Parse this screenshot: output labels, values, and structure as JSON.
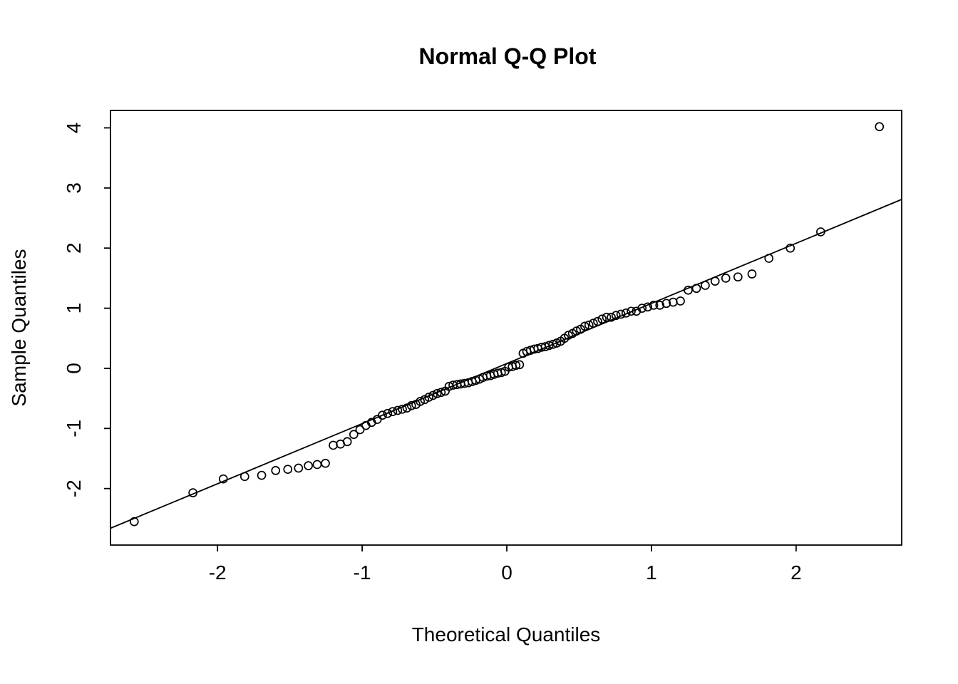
{
  "colors": {
    "foreground": "#000000",
    "background": "#ffffff"
  },
  "chart_data": {
    "type": "scatter",
    "title": "Normal Q-Q Plot",
    "xlabel": "Theoretical Quantiles",
    "ylabel": "Sample Quantiles",
    "xlim": [
      -2.74,
      2.73
    ],
    "ylim": [
      -2.94,
      4.29
    ],
    "x_ticks": [
      -2,
      -1,
      0,
      1,
      2
    ],
    "y_ticks": [
      -2,
      -1,
      0,
      1,
      2,
      3,
      4
    ],
    "grid": false,
    "legend": "none",
    "marker": "open-circle",
    "reference_line": {
      "slope": 1.0,
      "intercept": 0.08
    },
    "points": [
      [
        -2.576,
        -2.55
      ],
      [
        -2.17,
        -2.07
      ],
      [
        -1.96,
        -1.84
      ],
      [
        -1.812,
        -1.8
      ],
      [
        -1.695,
        -1.78
      ],
      [
        -1.598,
        -1.7
      ],
      [
        -1.514,
        -1.68
      ],
      [
        -1.44,
        -1.66
      ],
      [
        -1.372,
        -1.62
      ],
      [
        -1.311,
        -1.6
      ],
      [
        -1.254,
        -1.58
      ],
      [
        -1.2,
        -1.28
      ],
      [
        -1.15,
        -1.26
      ],
      [
        -1.103,
        -1.22
      ],
      [
        -1.058,
        -1.1
      ],
      [
        -1.015,
        -1.02
      ],
      [
        -0.974,
        -0.95
      ],
      [
        -0.935,
        -0.9
      ],
      [
        -0.896,
        -0.85
      ],
      [
        -0.86,
        -0.78
      ],
      [
        -0.824,
        -0.75
      ],
      [
        -0.789,
        -0.72
      ],
      [
        -0.755,
        -0.7
      ],
      [
        -0.722,
        -0.68
      ],
      [
        -0.69,
        -0.66
      ],
      [
        -0.659,
        -0.62
      ],
      [
        -0.628,
        -0.6
      ],
      [
        -0.598,
        -0.55
      ],
      [
        -0.568,
        -0.52
      ],
      [
        -0.539,
        -0.48
      ],
      [
        -0.51,
        -0.45
      ],
      [
        -0.482,
        -0.42
      ],
      [
        -0.454,
        -0.4
      ],
      [
        -0.426,
        -0.38
      ],
      [
        -0.399,
        -0.3
      ],
      [
        -0.372,
        -0.28
      ],
      [
        -0.345,
        -0.27
      ],
      [
        -0.319,
        -0.26
      ],
      [
        -0.292,
        -0.25
      ],
      [
        -0.266,
        -0.24
      ],
      [
        -0.24,
        -0.22
      ],
      [
        -0.215,
        -0.2
      ],
      [
        -0.189,
        -0.18
      ],
      [
        -0.164,
        -0.15
      ],
      [
        -0.138,
        -0.13
      ],
      [
        -0.113,
        -0.12
      ],
      [
        -0.088,
        -0.1
      ],
      [
        -0.063,
        -0.08
      ],
      [
        -0.038,
        -0.07
      ],
      [
        -0.013,
        -0.05
      ],
      [
        0.013,
        0.02
      ],
      [
        0.038,
        0.03
      ],
      [
        0.063,
        0.05
      ],
      [
        0.088,
        0.06
      ],
      [
        0.113,
        0.25
      ],
      [
        0.138,
        0.28
      ],
      [
        0.164,
        0.3
      ],
      [
        0.189,
        0.32
      ],
      [
        0.215,
        0.33
      ],
      [
        0.24,
        0.35
      ],
      [
        0.266,
        0.36
      ],
      [
        0.292,
        0.38
      ],
      [
        0.319,
        0.4
      ],
      [
        0.345,
        0.42
      ],
      [
        0.372,
        0.45
      ],
      [
        0.399,
        0.5
      ],
      [
        0.426,
        0.55
      ],
      [
        0.454,
        0.58
      ],
      [
        0.482,
        0.62
      ],
      [
        0.51,
        0.65
      ],
      [
        0.539,
        0.7
      ],
      [
        0.568,
        0.72
      ],
      [
        0.598,
        0.75
      ],
      [
        0.628,
        0.78
      ],
      [
        0.659,
        0.82
      ],
      [
        0.69,
        0.85
      ],
      [
        0.722,
        0.85
      ],
      [
        0.755,
        0.88
      ],
      [
        0.789,
        0.9
      ],
      [
        0.824,
        0.92
      ],
      [
        0.86,
        0.95
      ],
      [
        0.896,
        0.95
      ],
      [
        0.935,
        1.0
      ],
      [
        0.974,
        1.02
      ],
      [
        1.015,
        1.05
      ],
      [
        1.058,
        1.05
      ],
      [
        1.103,
        1.08
      ],
      [
        1.15,
        1.1
      ],
      [
        1.2,
        1.12
      ],
      [
        1.254,
        1.3
      ],
      [
        1.311,
        1.33
      ],
      [
        1.372,
        1.38
      ],
      [
        1.44,
        1.45
      ],
      [
        1.514,
        1.5
      ],
      [
        1.598,
        1.52
      ],
      [
        1.695,
        1.57
      ],
      [
        1.812,
        1.83
      ],
      [
        1.96,
        2.0
      ],
      [
        2.17,
        2.27
      ],
      [
        2.576,
        4.02
      ]
    ]
  }
}
